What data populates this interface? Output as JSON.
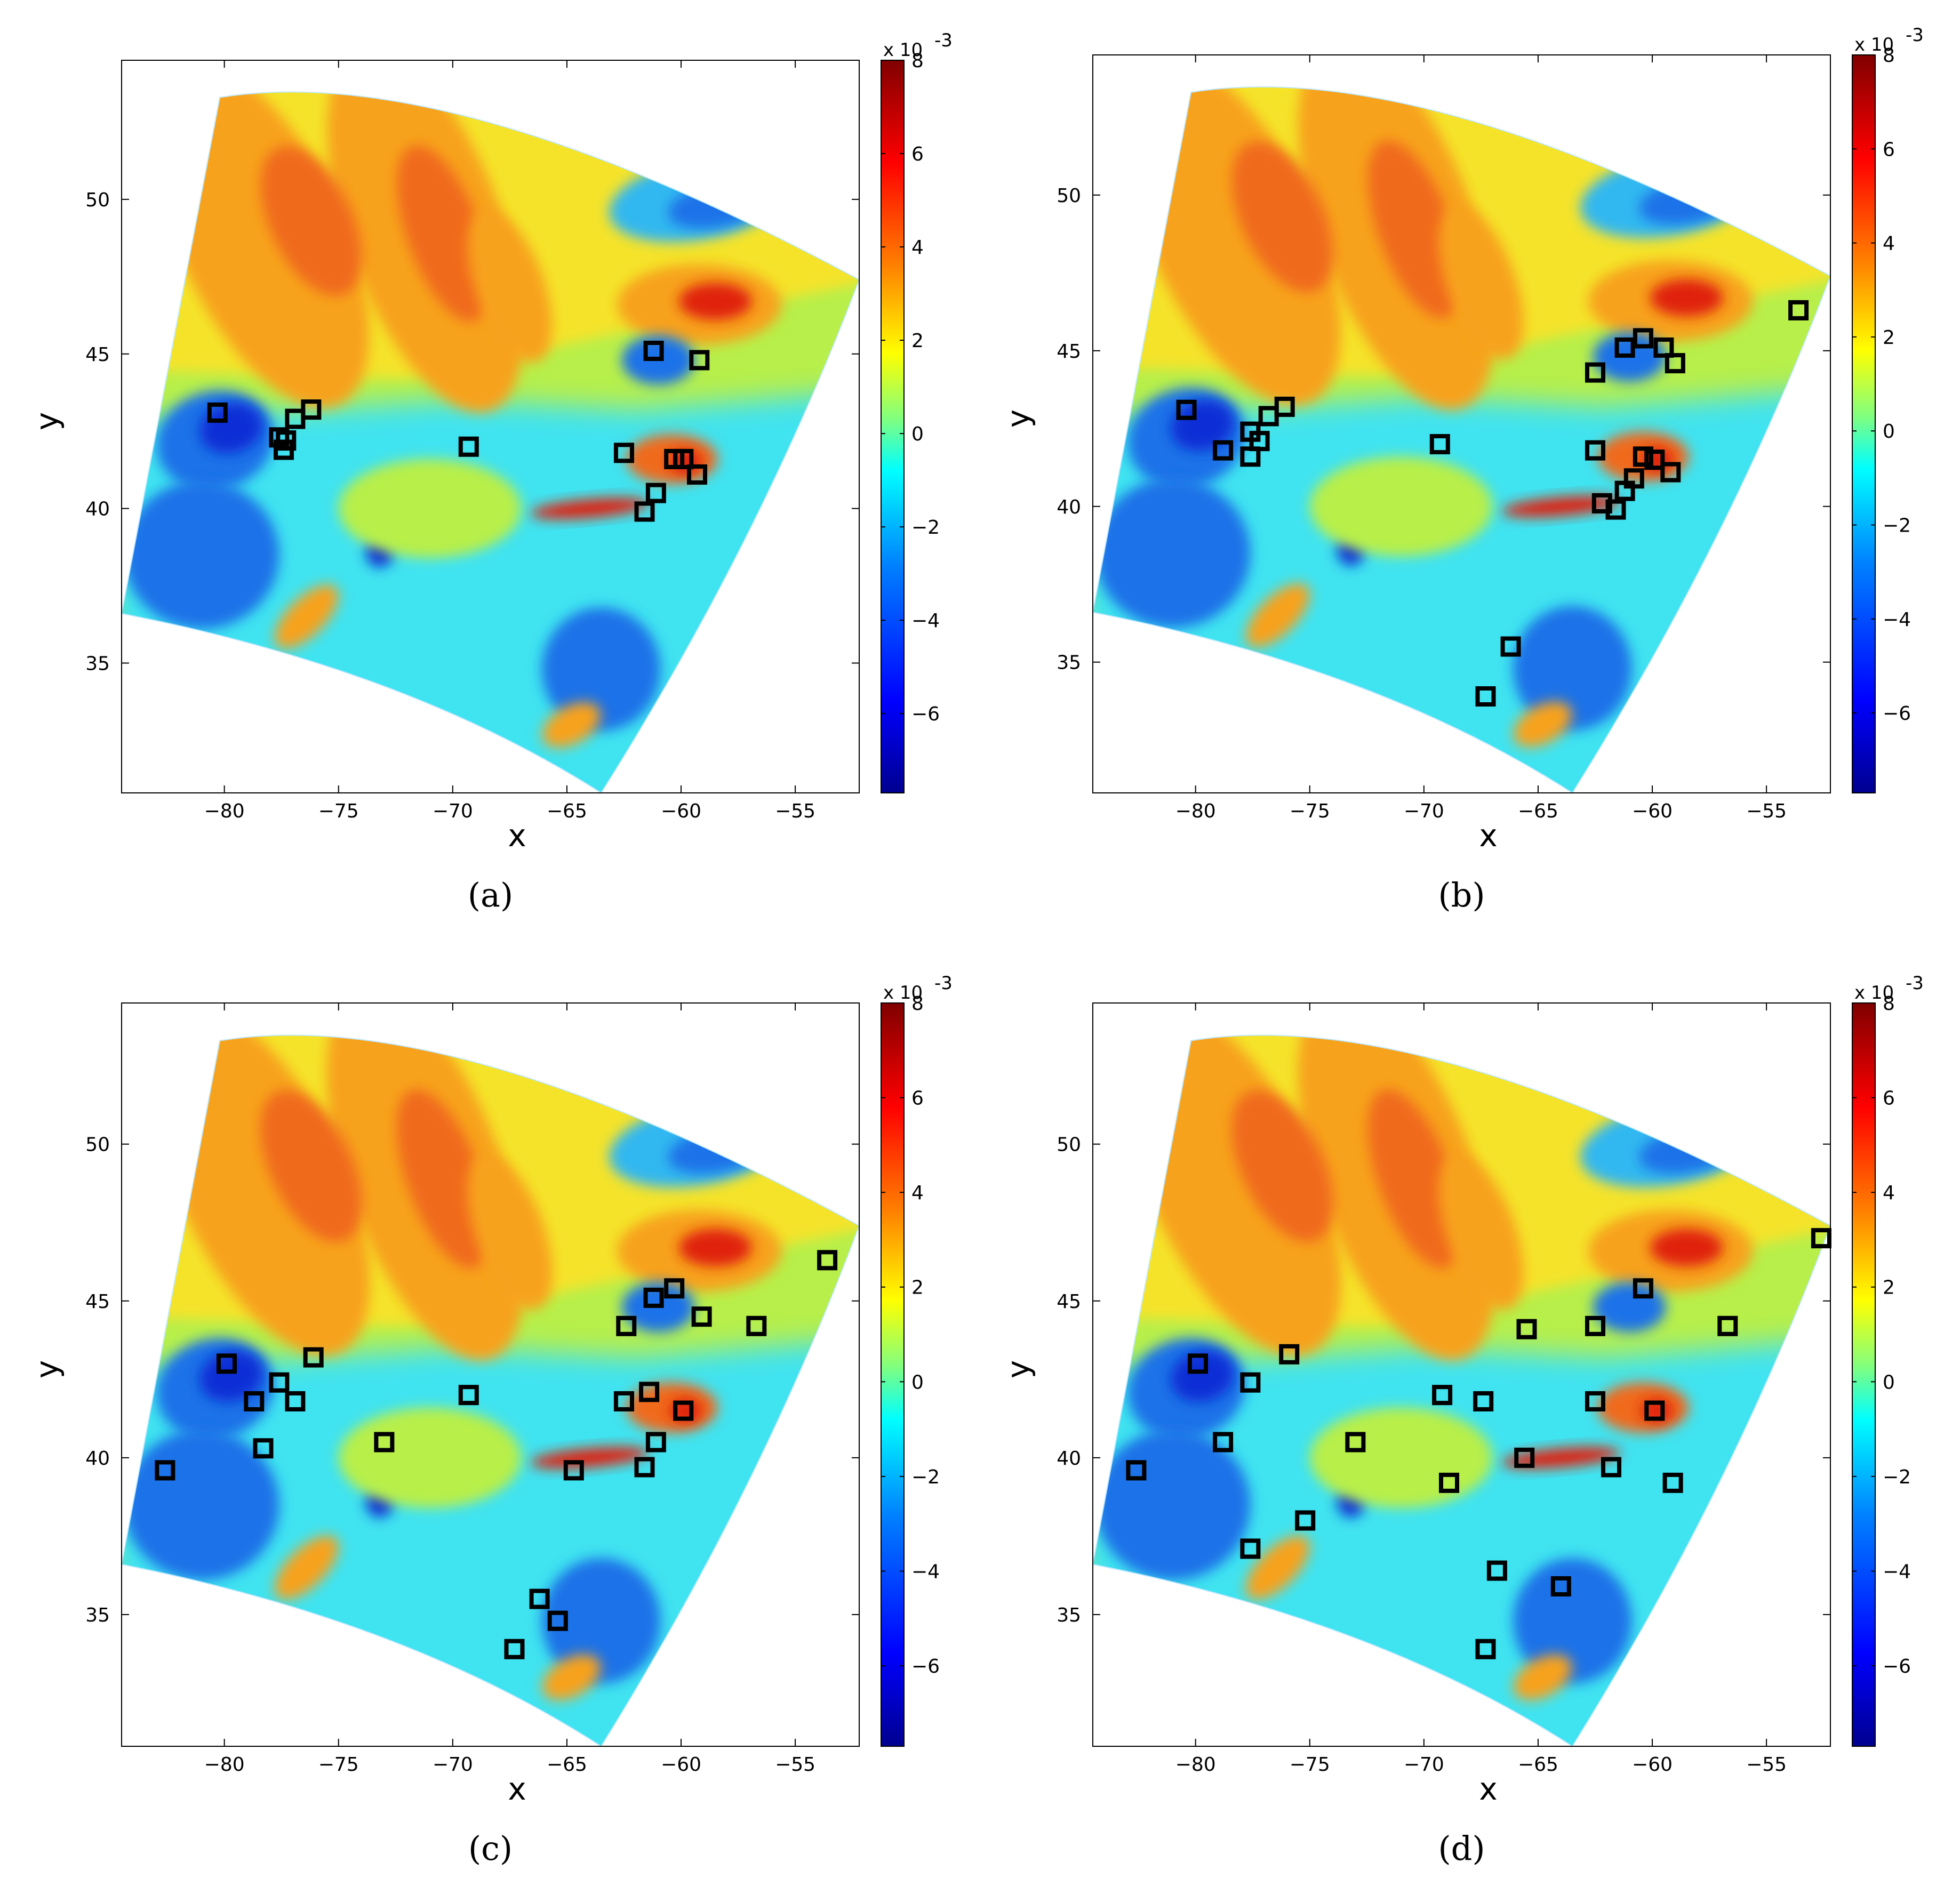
{
  "colormap": [
    "#00008f",
    "#0000ff",
    "#0080ff",
    "#00ffff",
    "#80ff80",
    "#ffff00",
    "#ff8000",
    "#ff0000",
    "#800000"
  ],
  "panel_colors": {
    "yellow": "#f5e32a",
    "orange": "#f7a21c",
    "darkorange": "#f06a1d",
    "red": "#e02010",
    "lightblue": "#33b8f0",
    "blue": "#1a72e8",
    "darkblue": "#0b2fd6",
    "cyan": "#40e3f0",
    "green": "#b8ef4a"
  },
  "chart_data": [
    {
      "type": "heatmap",
      "panel_label": "(a)",
      "xlabel": "x",
      "ylabel": "y",
      "xlim": [
        -84.5,
        -52.2
      ],
      "ylim": [
        30.8,
        54.5
      ],
      "xticks": [
        -80,
        -75,
        -70,
        -65,
        -60,
        -55
      ],
      "yticks": [
        35,
        40,
        45,
        50
      ],
      "colorbar": {
        "min": -7.7,
        "max": 8,
        "ticks": [
          -6,
          -4,
          -2,
          0,
          2,
          4,
          6,
          8
        ],
        "multiplier": "x 10",
        "exponent": "-3"
      },
      "markers": [
        [
          -80.3,
          43.1
        ],
        [
          -76.2,
          43.2
        ],
        [
          -76.9,
          42.9
        ],
        [
          -77.6,
          42.3
        ],
        [
          -77.3,
          42.2
        ],
        [
          -77.4,
          41.9
        ],
        [
          -69.3,
          42.0
        ],
        [
          -61.2,
          45.1
        ],
        [
          -59.2,
          44.8
        ],
        [
          -62.5,
          41.8
        ],
        [
          -60.3,
          41.6
        ],
        [
          -59.9,
          41.6
        ],
        [
          -59.3,
          41.1
        ],
        [
          -61.1,
          40.5
        ],
        [
          -61.6,
          39.9
        ]
      ]
    },
    {
      "type": "heatmap",
      "panel_label": "(b)",
      "xlabel": "x",
      "ylabel": "y",
      "xlim": [
        -84.5,
        -52.2
      ],
      "ylim": [
        30.8,
        54.5
      ],
      "xticks": [
        -80,
        -75,
        -70,
        -65,
        -60,
        -55
      ],
      "yticks": [
        35,
        40,
        45,
        50
      ],
      "colorbar": {
        "min": -7.7,
        "max": 8,
        "ticks": [
          -6,
          -4,
          -2,
          0,
          2,
          4,
          6,
          8
        ],
        "multiplier": "x 10",
        "exponent": "-3"
      },
      "markers": [
        [
          -80.4,
          43.1
        ],
        [
          -76.1,
          43.2
        ],
        [
          -76.8,
          42.9
        ],
        [
          -77.6,
          42.4
        ],
        [
          -77.2,
          42.1
        ],
        [
          -78.8,
          41.8
        ],
        [
          -77.6,
          41.6
        ],
        [
          -69.3,
          42.0
        ],
        [
          -53.6,
          46.3
        ],
        [
          -60.4,
          45.4
        ],
        [
          -59.5,
          45.1
        ],
        [
          -61.2,
          45.1
        ],
        [
          -59.0,
          44.6
        ],
        [
          -62.5,
          44.3
        ],
        [
          -62.5,
          41.8
        ],
        [
          -60.4,
          41.6
        ],
        [
          -59.9,
          41.5
        ],
        [
          -59.2,
          41.1
        ],
        [
          -60.8,
          40.9
        ],
        [
          -61.2,
          40.5
        ],
        [
          -62.2,
          40.1
        ],
        [
          -61.6,
          39.9
        ],
        [
          -66.2,
          35.5
        ],
        [
          -67.3,
          33.9
        ]
      ]
    },
    {
      "type": "heatmap",
      "panel_label": "(c)",
      "xlabel": "x",
      "ylabel": "y",
      "xlim": [
        -84.5,
        -52.2
      ],
      "ylim": [
        30.8,
        54.5
      ],
      "xticks": [
        -80,
        -75,
        -70,
        -65,
        -60,
        -55
      ],
      "yticks": [
        35,
        40,
        45,
        50
      ],
      "colorbar": {
        "min": -7.7,
        "max": 8,
        "ticks": [
          -6,
          -4,
          -2,
          0,
          2,
          4,
          6,
          8
        ],
        "multiplier": "x 10",
        "exponent": "-3"
      },
      "markers": [
        [
          -79.9,
          43.0
        ],
        [
          -76.1,
          43.2
        ],
        [
          -77.6,
          42.4
        ],
        [
          -78.7,
          41.8
        ],
        [
          -76.9,
          41.8
        ],
        [
          -78.3,
          40.3
        ],
        [
          -82.6,
          39.6
        ],
        [
          -73.0,
          40.5
        ],
        [
          -69.3,
          42.0
        ],
        [
          -53.6,
          46.3
        ],
        [
          -60.3,
          45.4
        ],
        [
          -61.2,
          45.1
        ],
        [
          -59.1,
          44.5
        ],
        [
          -62.4,
          44.2
        ],
        [
          -56.7,
          44.2
        ],
        [
          -61.4,
          42.1
        ],
        [
          -62.5,
          41.8
        ],
        [
          -59.9,
          41.5
        ],
        [
          -61.1,
          40.5
        ],
        [
          -61.6,
          39.7
        ],
        [
          -64.7,
          39.6
        ],
        [
          -66.2,
          35.5
        ],
        [
          -65.4,
          34.8
        ],
        [
          -67.3,
          33.9
        ]
      ]
    },
    {
      "type": "heatmap",
      "panel_label": "(d)",
      "xlabel": "x",
      "ylabel": "y",
      "xlim": [
        -84.5,
        -52.2
      ],
      "ylim": [
        30.8,
        54.5
      ],
      "xticks": [
        -80,
        -75,
        -70,
        -65,
        -60,
        -55
      ],
      "yticks": [
        35,
        40,
        45,
        50
      ],
      "colorbar": {
        "min": -7.7,
        "max": 8,
        "ticks": [
          -6,
          -4,
          -2,
          0,
          2,
          4,
          6,
          8
        ],
        "multiplier": "x 10",
        "exponent": "-3"
      },
      "markers": [
        [
          -79.9,
          43.0
        ],
        [
          -75.9,
          43.3
        ],
        [
          -77.6,
          42.4
        ],
        [
          -78.8,
          40.5
        ],
        [
          -82.6,
          39.6
        ],
        [
          -73.0,
          40.5
        ],
        [
          -69.2,
          42.0
        ],
        [
          -67.4,
          41.8
        ],
        [
          -65.5,
          44.1
        ],
        [
          -62.5,
          44.2
        ],
        [
          -60.4,
          45.4
        ],
        [
          -56.7,
          44.2
        ],
        [
          -52.6,
          47.0
        ],
        [
          -62.5,
          41.8
        ],
        [
          -59.9,
          41.5
        ],
        [
          -65.6,
          40.0
        ],
        [
          -61.8,
          39.7
        ],
        [
          -68.9,
          39.2
        ],
        [
          -59.1,
          39.2
        ],
        [
          -75.2,
          38.0
        ],
        [
          -77.6,
          37.1
        ],
        [
          -66.8,
          36.4
        ],
        [
          -64.0,
          35.9
        ],
        [
          -67.3,
          33.9
        ]
      ]
    }
  ]
}
